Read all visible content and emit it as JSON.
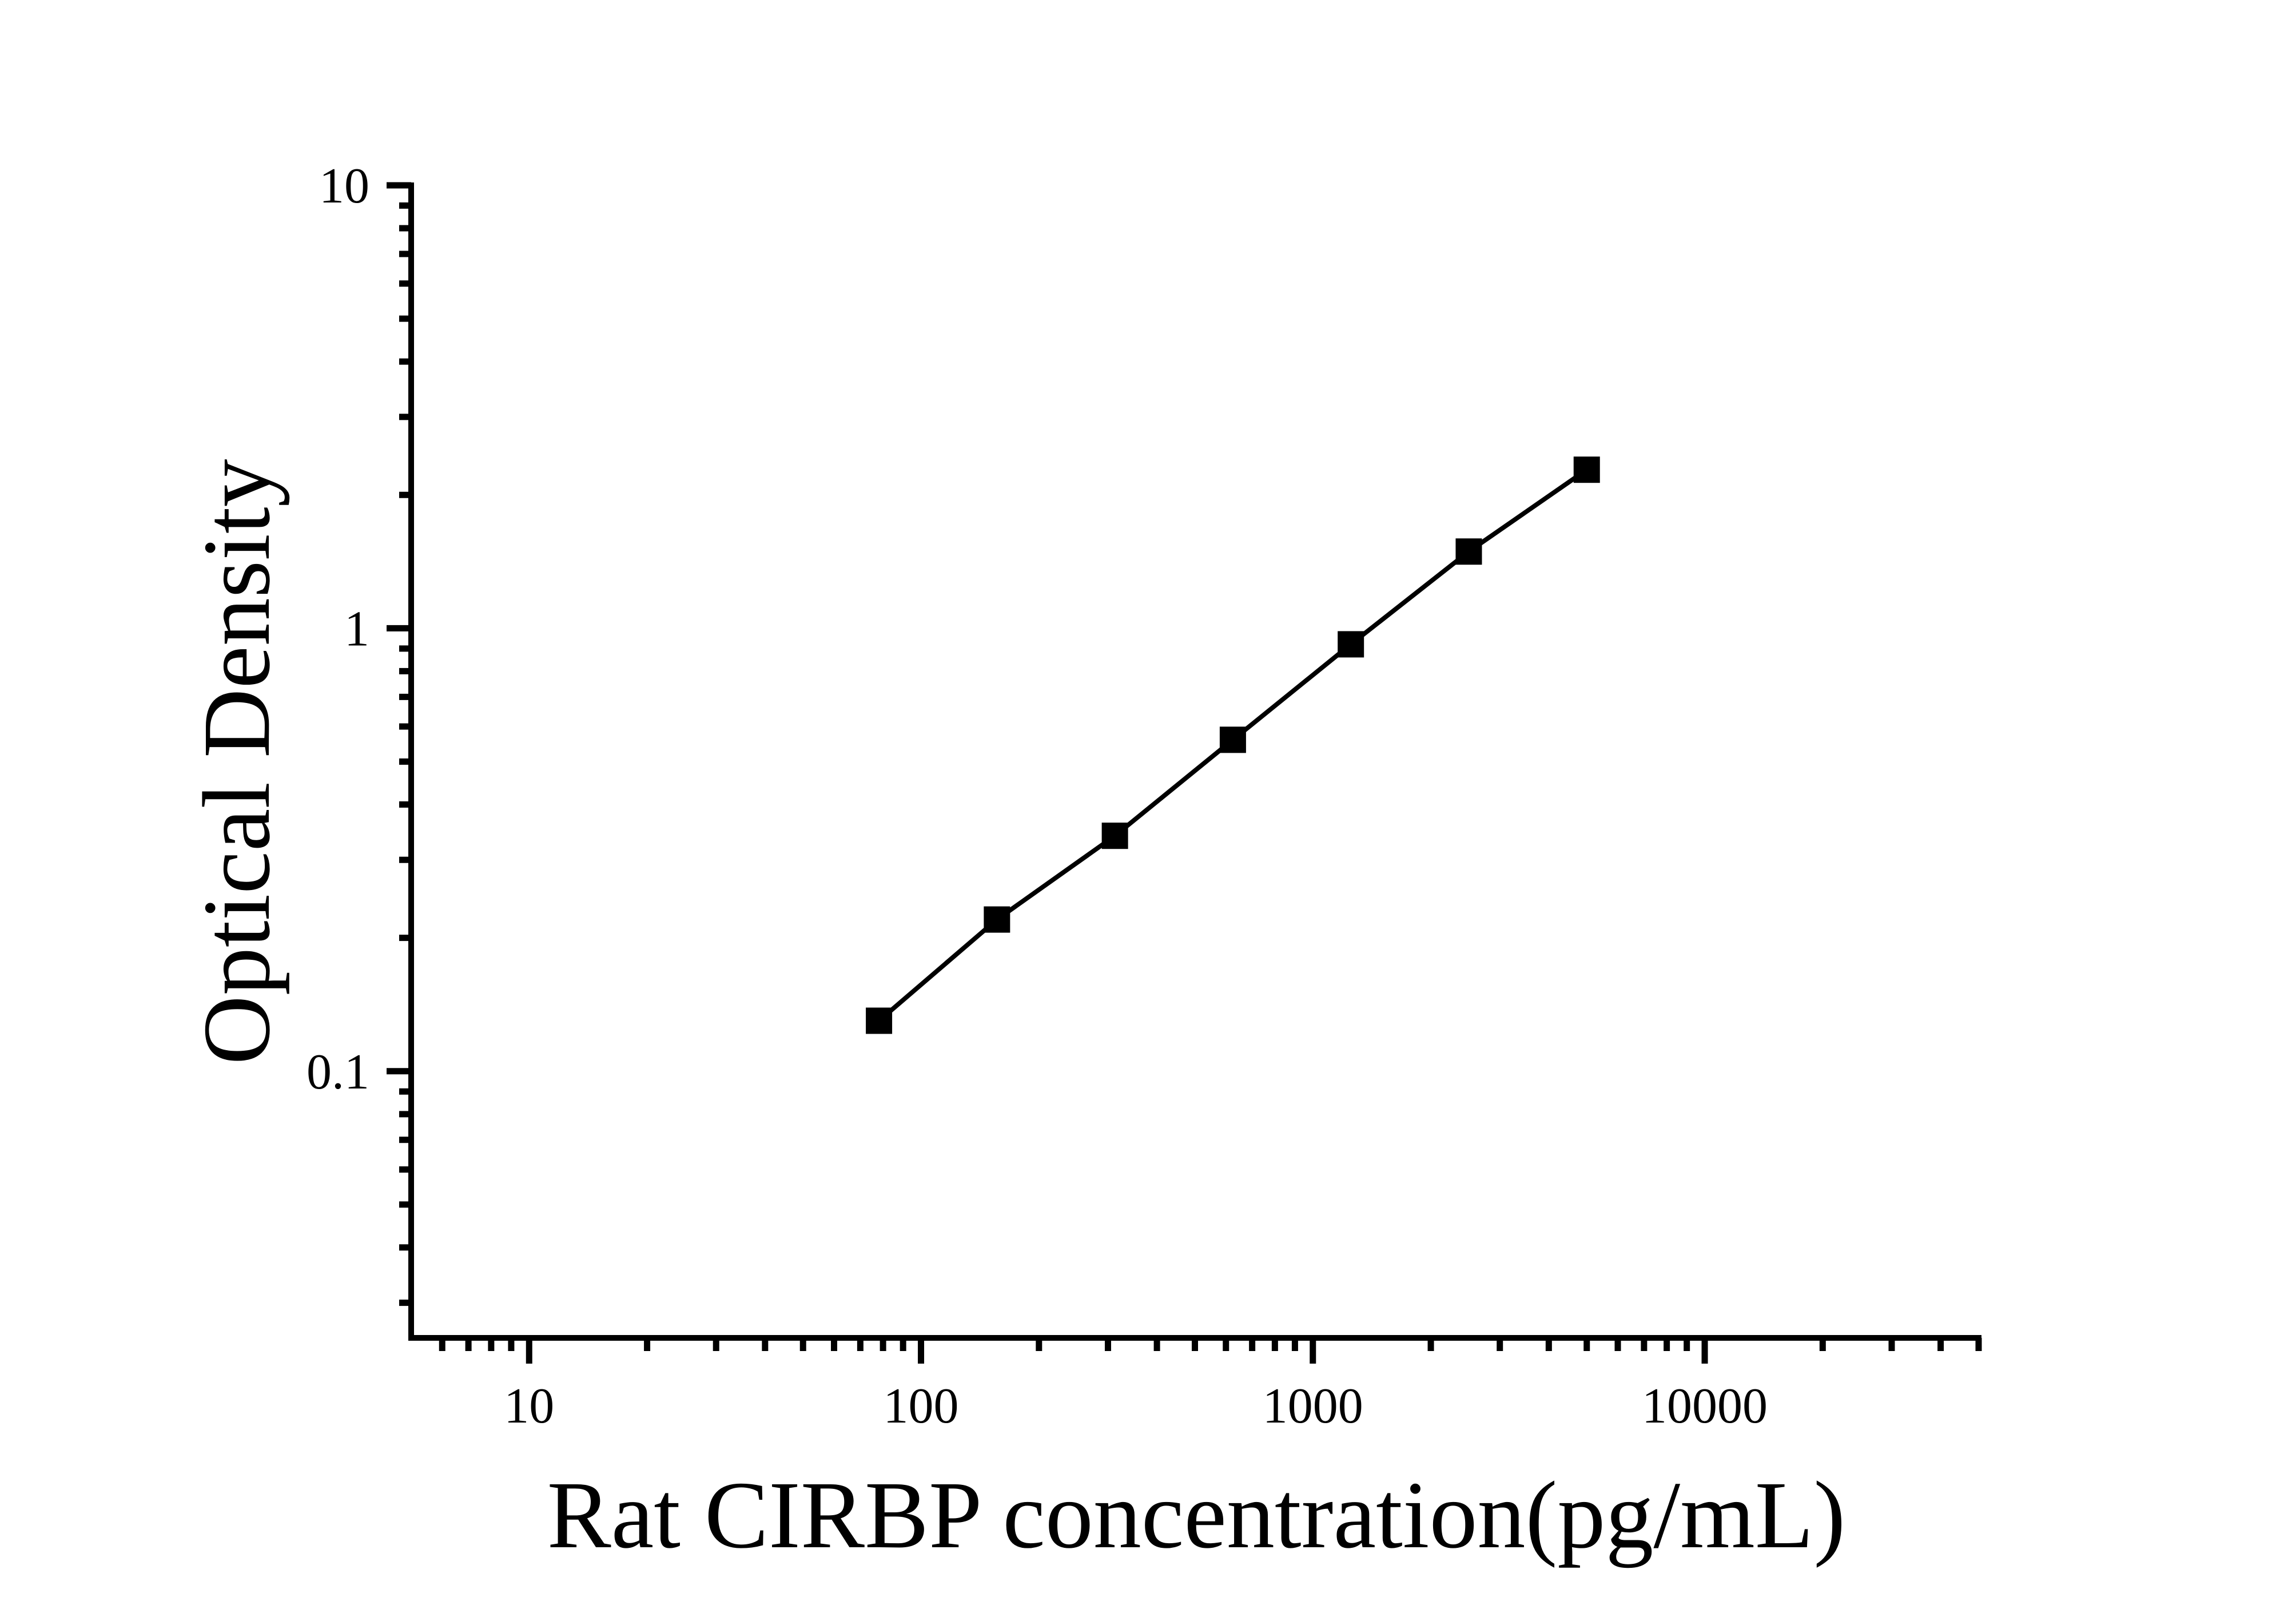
{
  "chart_data": {
    "type": "line",
    "title": "",
    "xlabel": "Rat CIRBP concentration(pg/mL)",
    "ylabel": "Optical Density",
    "x_scale": "log",
    "y_scale": "log",
    "xlim": [
      5,
      50000
    ],
    "ylim": [
      0.025,
      10
    ],
    "x": [
      78.13,
      156.25,
      312.5,
      625,
      1250,
      2500,
      5000
    ],
    "y": [
      0.13,
      0.22,
      0.34,
      0.56,
      0.92,
      1.49,
      2.28
    ],
    "series_name": "standard-curve",
    "marker": "filled-square",
    "x_major_ticks": [
      10,
      100,
      1000,
      10000
    ],
    "x_major_tick_labels": [
      "10",
      "100",
      "1000",
      "10000"
    ],
    "y_major_ticks": [
      0.1,
      1,
      10
    ],
    "y_major_tick_labels": [
      "0.1",
      "1",
      "10"
    ],
    "grid": false,
    "legend": "none",
    "colors": {
      "foreground": "#000000",
      "background": "#ffffff"
    }
  }
}
